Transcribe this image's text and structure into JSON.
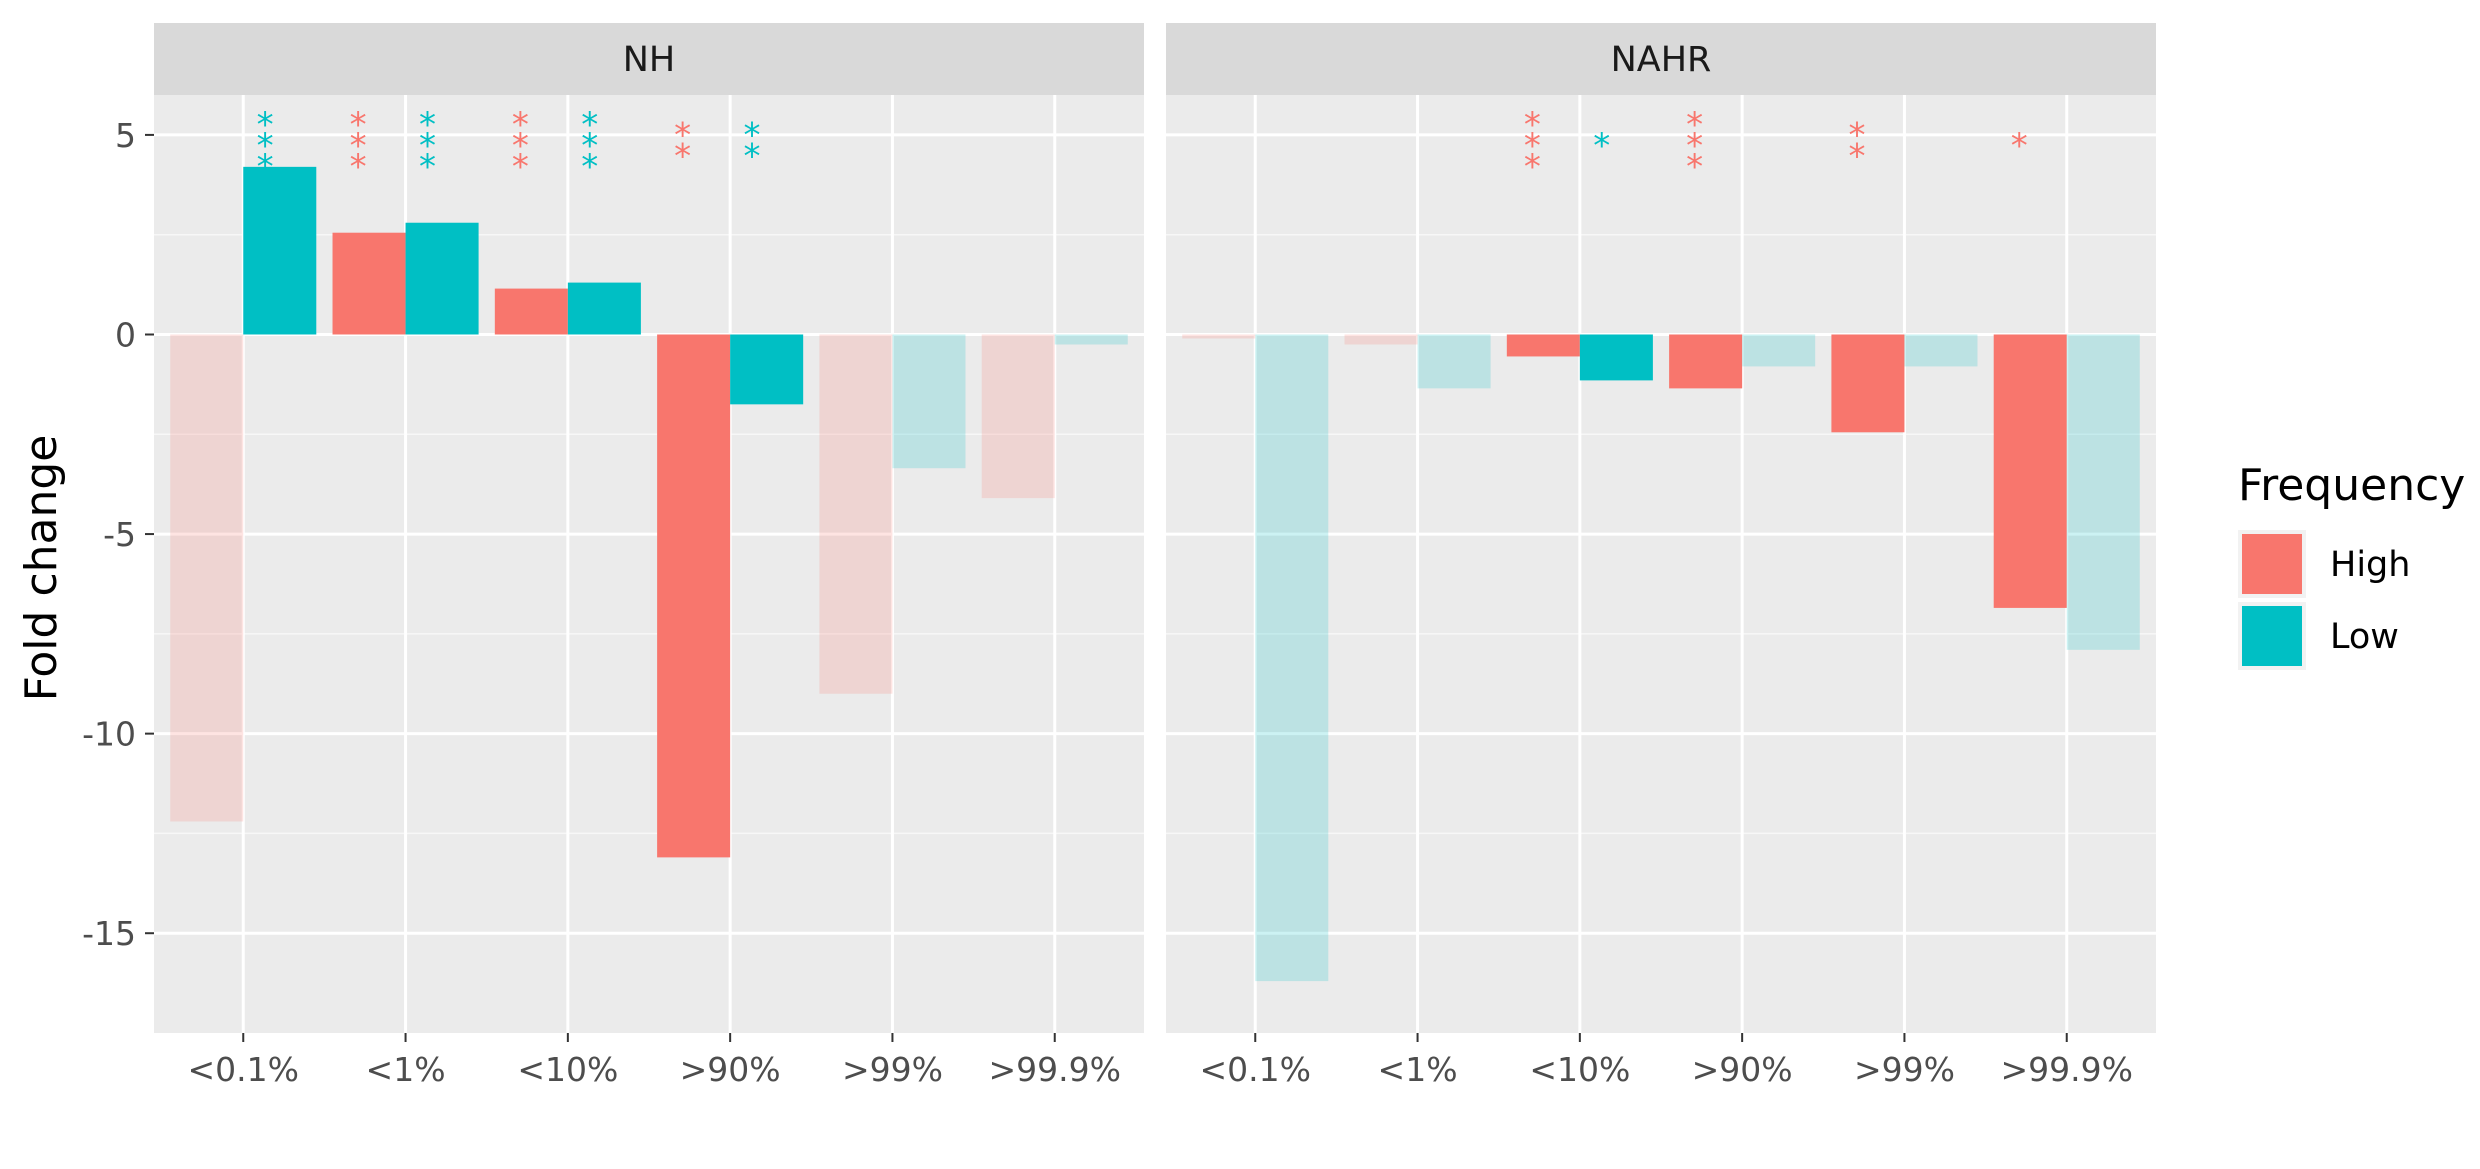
{
  "chart_data": {
    "type": "bar",
    "ylabel": "Fold change",
    "xlabel": "",
    "ylim": [
      -17.5,
      6
    ],
    "yticks": [
      5,
      0,
      -5,
      -10,
      -15
    ],
    "categories": [
      "<0.1%",
      "<1%",
      "<10%",
      ">90%",
      ">99%",
      ">99.9%"
    ],
    "grid": true,
    "legend": {
      "title": "Frequency",
      "position": "right",
      "entries": [
        {
          "name": "High",
          "color": "#F8766D"
        },
        {
          "name": "Low",
          "color": "#00BFC4"
        }
      ]
    },
    "panels": [
      {
        "title": "NH",
        "series": [
          {
            "name": "High",
            "color": "#F8766D",
            "values": [
              -12.2,
              2.55,
              1.15,
              -13.1,
              -9.0,
              -4.1
            ],
            "significant": [
              false,
              true,
              true,
              true,
              false,
              false
            ],
            "stars": [
              "",
              "***",
              "***",
              "**",
              "",
              ""
            ]
          },
          {
            "name": "Low",
            "color": "#00BFC4",
            "values": [
              4.2,
              2.8,
              1.3,
              -1.75,
              -3.35,
              -0.25
            ],
            "significant": [
              true,
              true,
              true,
              true,
              false,
              false
            ],
            "stars": [
              "***",
              "***",
              "***",
              "**",
              "",
              ""
            ]
          }
        ]
      },
      {
        "title": "NAHR",
        "series": [
          {
            "name": "High",
            "color": "#F8766D",
            "values": [
              -0.1,
              -0.25,
              -0.55,
              -1.35,
              -2.45,
              -6.85
            ],
            "significant": [
              false,
              false,
              true,
              true,
              true,
              true
            ],
            "stars": [
              "",
              "",
              "***",
              "***",
              "**",
              "*"
            ]
          },
          {
            "name": "Low",
            "color": "#00BFC4",
            "values": [
              -16.2,
              -1.35,
              -1.15,
              -0.8,
              -0.8,
              -7.9
            ],
            "significant": [
              false,
              false,
              true,
              false,
              false,
              false
            ],
            "stars": [
              "",
              "",
              "*",
              "",
              "",
              ""
            ]
          }
        ]
      }
    ]
  }
}
